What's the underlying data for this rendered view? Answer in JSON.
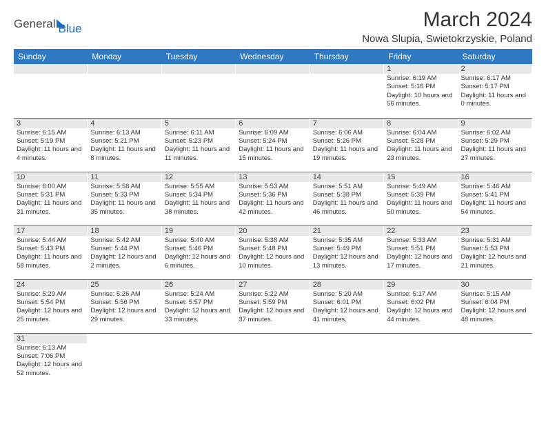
{
  "logo": {
    "text1": "General",
    "text2": "Blue"
  },
  "title": "March 2024",
  "location": "Nowa Slupia, Swietokrzyskie, Poland",
  "weekdays": [
    "Sunday",
    "Monday",
    "Tuesday",
    "Wednesday",
    "Thursday",
    "Friday",
    "Saturday"
  ],
  "colors": {
    "header_bg": "#2f79c2",
    "header_text": "#ffffff",
    "daynum_bg": "#e8e8e8",
    "border": "#2f79c2",
    "logo_blue": "#1e6bb8"
  },
  "weeks": [
    [
      null,
      null,
      null,
      null,
      null,
      {
        "n": "1",
        "sunrise": "Sunrise: 6:19 AM",
        "sunset": "Sunset: 5:16 PM",
        "daylight": "Daylight: 10 hours and 56 minutes."
      },
      {
        "n": "2",
        "sunrise": "Sunrise: 6:17 AM",
        "sunset": "Sunset: 5:17 PM",
        "daylight": "Daylight: 11 hours and 0 minutes."
      }
    ],
    [
      {
        "n": "3",
        "sunrise": "Sunrise: 6:15 AM",
        "sunset": "Sunset: 5:19 PM",
        "daylight": "Daylight: 11 hours and 4 minutes."
      },
      {
        "n": "4",
        "sunrise": "Sunrise: 6:13 AM",
        "sunset": "Sunset: 5:21 PM",
        "daylight": "Daylight: 11 hours and 8 minutes."
      },
      {
        "n": "5",
        "sunrise": "Sunrise: 6:11 AM",
        "sunset": "Sunset: 5:23 PM",
        "daylight": "Daylight: 11 hours and 11 minutes."
      },
      {
        "n": "6",
        "sunrise": "Sunrise: 6:09 AM",
        "sunset": "Sunset: 5:24 PM",
        "daylight": "Daylight: 11 hours and 15 minutes."
      },
      {
        "n": "7",
        "sunrise": "Sunrise: 6:06 AM",
        "sunset": "Sunset: 5:26 PM",
        "daylight": "Daylight: 11 hours and 19 minutes."
      },
      {
        "n": "8",
        "sunrise": "Sunrise: 6:04 AM",
        "sunset": "Sunset: 5:28 PM",
        "daylight": "Daylight: 11 hours and 23 minutes."
      },
      {
        "n": "9",
        "sunrise": "Sunrise: 6:02 AM",
        "sunset": "Sunset: 5:29 PM",
        "daylight": "Daylight: 11 hours and 27 minutes."
      }
    ],
    [
      {
        "n": "10",
        "sunrise": "Sunrise: 6:00 AM",
        "sunset": "Sunset: 5:31 PM",
        "daylight": "Daylight: 11 hours and 31 minutes."
      },
      {
        "n": "11",
        "sunrise": "Sunrise: 5:58 AM",
        "sunset": "Sunset: 5:33 PM",
        "daylight": "Daylight: 11 hours and 35 minutes."
      },
      {
        "n": "12",
        "sunrise": "Sunrise: 5:55 AM",
        "sunset": "Sunset: 5:34 PM",
        "daylight": "Daylight: 11 hours and 38 minutes."
      },
      {
        "n": "13",
        "sunrise": "Sunrise: 5:53 AM",
        "sunset": "Sunset: 5:36 PM",
        "daylight": "Daylight: 11 hours and 42 minutes."
      },
      {
        "n": "14",
        "sunrise": "Sunrise: 5:51 AM",
        "sunset": "Sunset: 5:38 PM",
        "daylight": "Daylight: 11 hours and 46 minutes."
      },
      {
        "n": "15",
        "sunrise": "Sunrise: 5:49 AM",
        "sunset": "Sunset: 5:39 PM",
        "daylight": "Daylight: 11 hours and 50 minutes."
      },
      {
        "n": "16",
        "sunrise": "Sunrise: 5:46 AM",
        "sunset": "Sunset: 5:41 PM",
        "daylight": "Daylight: 11 hours and 54 minutes."
      }
    ],
    [
      {
        "n": "17",
        "sunrise": "Sunrise: 5:44 AM",
        "sunset": "Sunset: 5:43 PM",
        "daylight": "Daylight: 11 hours and 58 minutes."
      },
      {
        "n": "18",
        "sunrise": "Sunrise: 5:42 AM",
        "sunset": "Sunset: 5:44 PM",
        "daylight": "Daylight: 12 hours and 2 minutes."
      },
      {
        "n": "19",
        "sunrise": "Sunrise: 5:40 AM",
        "sunset": "Sunset: 5:46 PM",
        "daylight": "Daylight: 12 hours and 6 minutes."
      },
      {
        "n": "20",
        "sunrise": "Sunrise: 5:38 AM",
        "sunset": "Sunset: 5:48 PM",
        "daylight": "Daylight: 12 hours and 10 minutes."
      },
      {
        "n": "21",
        "sunrise": "Sunrise: 5:35 AM",
        "sunset": "Sunset: 5:49 PM",
        "daylight": "Daylight: 12 hours and 13 minutes."
      },
      {
        "n": "22",
        "sunrise": "Sunrise: 5:33 AM",
        "sunset": "Sunset: 5:51 PM",
        "daylight": "Daylight: 12 hours and 17 minutes."
      },
      {
        "n": "23",
        "sunrise": "Sunrise: 5:31 AM",
        "sunset": "Sunset: 5:53 PM",
        "daylight": "Daylight: 12 hours and 21 minutes."
      }
    ],
    [
      {
        "n": "24",
        "sunrise": "Sunrise: 5:29 AM",
        "sunset": "Sunset: 5:54 PM",
        "daylight": "Daylight: 12 hours and 25 minutes."
      },
      {
        "n": "25",
        "sunrise": "Sunrise: 5:26 AM",
        "sunset": "Sunset: 5:56 PM",
        "daylight": "Daylight: 12 hours and 29 minutes."
      },
      {
        "n": "26",
        "sunrise": "Sunrise: 5:24 AM",
        "sunset": "Sunset: 5:57 PM",
        "daylight": "Daylight: 12 hours and 33 minutes."
      },
      {
        "n": "27",
        "sunrise": "Sunrise: 5:22 AM",
        "sunset": "Sunset: 5:59 PM",
        "daylight": "Daylight: 12 hours and 37 minutes."
      },
      {
        "n": "28",
        "sunrise": "Sunrise: 5:20 AM",
        "sunset": "Sunset: 6:01 PM",
        "daylight": "Daylight: 12 hours and 41 minutes."
      },
      {
        "n": "29",
        "sunrise": "Sunrise: 5:17 AM",
        "sunset": "Sunset: 6:02 PM",
        "daylight": "Daylight: 12 hours and 44 minutes."
      },
      {
        "n": "30",
        "sunrise": "Sunrise: 5:15 AM",
        "sunset": "Sunset: 6:04 PM",
        "daylight": "Daylight: 12 hours and 48 minutes."
      }
    ],
    [
      {
        "n": "31",
        "sunrise": "Sunrise: 6:13 AM",
        "sunset": "Sunset: 7:06 PM",
        "daylight": "Daylight: 12 hours and 52 minutes."
      },
      null,
      null,
      null,
      null,
      null,
      null
    ]
  ]
}
